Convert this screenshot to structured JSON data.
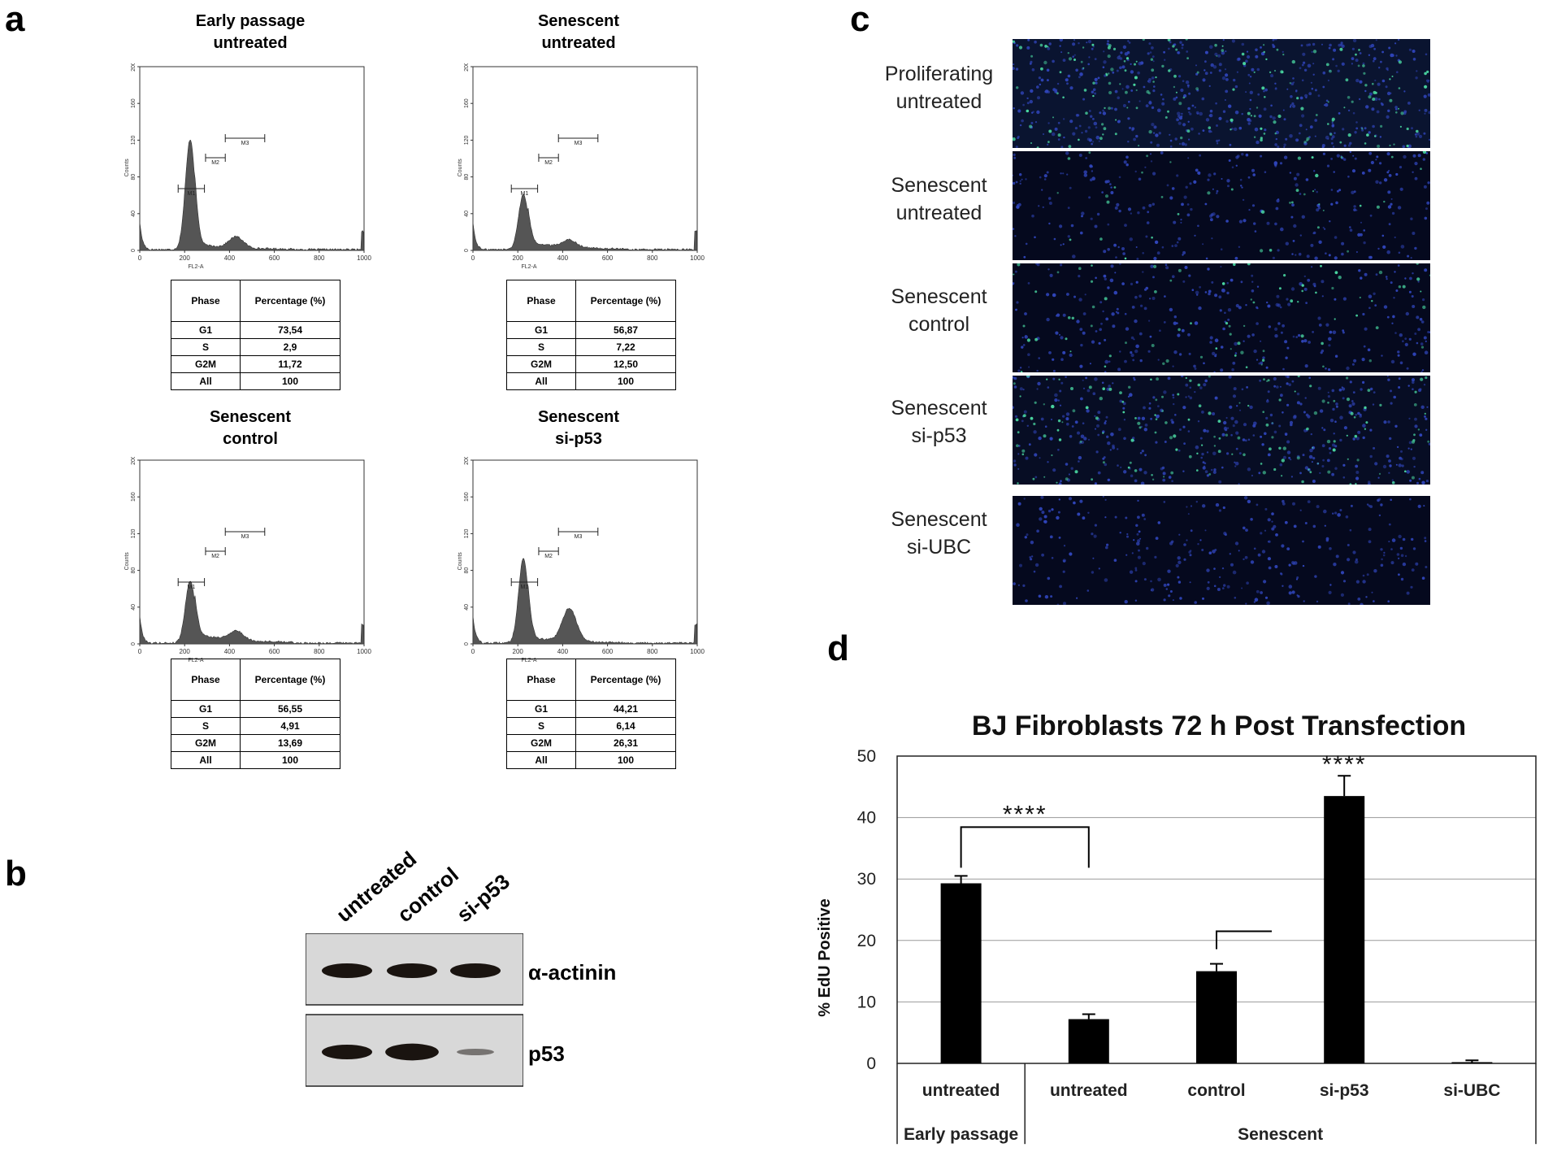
{
  "panel_letters": {
    "a": "a",
    "b": "b",
    "c": "c",
    "d": "d"
  },
  "histograms": [
    {
      "title_line1": "Early passage",
      "title_line2": "untreated",
      "peak_g1": 120,
      "peak_g2": 12,
      "noise": 6,
      "yticks": [
        "0",
        "40",
        "80",
        "120",
        "160",
        "200"
      ],
      "xticks": [
        "0",
        "200",
        "400",
        "600",
        "800",
        "1000"
      ],
      "ylabel": "Counts",
      "xlabel": "FL2-A",
      "markers": [
        "M1",
        "M2",
        "M3"
      ],
      "table": {
        "header": [
          "Phase",
          "Percentage (%)"
        ],
        "rows": [
          [
            "G1",
            "73,54"
          ],
          [
            "S",
            "2,9"
          ],
          [
            "G2M",
            "11,72"
          ],
          [
            "All",
            "100"
          ]
        ]
      }
    },
    {
      "title_line1": "Senescent",
      "title_line2": "untreated",
      "peak_g1": 60,
      "peak_g2": 8,
      "noise": 8,
      "yticks": [
        "0",
        "40",
        "80",
        "120",
        "160",
        "200"
      ],
      "xticks": [
        "0",
        "200",
        "400",
        "600",
        "800",
        "1000"
      ],
      "ylabel": "Counts",
      "xlabel": "FL2-A",
      "markers": [
        "M1",
        "M2",
        "M3"
      ],
      "table": {
        "header": [
          "Phase",
          "Percentage (%)"
        ],
        "rows": [
          [
            "G1",
            "56,87"
          ],
          [
            "S",
            "7,22"
          ],
          [
            "G2M",
            "12,50"
          ],
          [
            "All",
            "100"
          ]
        ]
      }
    },
    {
      "title_line1": "Senescent",
      "title_line2": "control",
      "peak_g1": 68,
      "peak_g2": 10,
      "noise": 10,
      "yticks": [
        "0",
        "40",
        "80",
        "120",
        "160",
        "200"
      ],
      "xticks": [
        "0",
        "200",
        "400",
        "600",
        "800",
        "1000"
      ],
      "ylabel": "Counts",
      "xlabel": "FL2-A",
      "markers": [
        "M1",
        "M2",
        "M3"
      ],
      "table": {
        "header": [
          "Phase",
          "Percentage (%)"
        ],
        "rows": [
          [
            "G1",
            "56,55"
          ],
          [
            "S",
            "4,91"
          ],
          [
            "G2M",
            "13,69"
          ],
          [
            "All",
            "100"
          ]
        ]
      }
    },
    {
      "title_line1": "Senescent",
      "title_line2": "si-p53",
      "peak_g1": 92,
      "peak_g2": 36,
      "noise": 6,
      "yticks": [
        "0",
        "40",
        "80",
        "120",
        "160",
        "200"
      ],
      "xticks": [
        "0",
        "200",
        "400",
        "600",
        "800",
        "1000"
      ],
      "ylabel": "Counts",
      "xlabel": "FL2-A",
      "markers": [
        "M1",
        "M2",
        "M3"
      ],
      "table": {
        "header": [
          "Phase",
          "Percentage (%)"
        ],
        "rows": [
          [
            "G1",
            "44,21"
          ],
          [
            "S",
            "6,14"
          ],
          [
            "G2M",
            "26,31"
          ],
          [
            "All",
            "100"
          ]
        ]
      }
    }
  ],
  "western_blot": {
    "lanes": [
      "untreated",
      "control",
      "si-p53"
    ],
    "bands": [
      {
        "label": "α-actinin",
        "intensity": [
          1.0,
          1.0,
          1.0
        ]
      },
      {
        "label": "p53",
        "intensity": [
          1.0,
          1.15,
          0.35
        ]
      }
    ]
  },
  "microscopy": {
    "panels": [
      {
        "label_line1": "Proliferating",
        "label_line2": "untreated",
        "green": 0.7,
        "blue": 1.0
      },
      {
        "label_line1": "Senescent",
        "label_line2": "untreated",
        "green": 0.15,
        "blue": 0.6
      },
      {
        "label_line1": "Senescent",
        "label_line2": "control",
        "green": 0.3,
        "blue": 0.6
      },
      {
        "label_line1": "Senescent",
        "label_line2": "si-p53",
        "green": 0.6,
        "blue": 0.8
      },
      {
        "label_line1": "Senescent",
        "label_line2": "si-UBC",
        "green": 0.0,
        "blue": 0.6
      }
    ]
  },
  "chart_data": {
    "type": "bar",
    "title": "BJ Fibroblasts 72 h Post Transfection",
    "ylabel": "% EdU Positive",
    "xlabel": "",
    "ylim": [
      0,
      50
    ],
    "yticks": [
      0,
      10,
      20,
      30,
      40,
      50
    ],
    "grid": true,
    "categories": [
      "untreated",
      "untreated",
      "control",
      "si-p53",
      "si-UBC"
    ],
    "groups": [
      {
        "label": "Early passage",
        "categories": [
          "untreated"
        ]
      },
      {
        "label": "Senescent",
        "categories": [
          "untreated",
          "control",
          "si-p53",
          "si-UBC"
        ]
      }
    ],
    "values": [
      29.3,
      7.2,
      15.0,
      43.5,
      0.2
    ],
    "errors": [
      1.2,
      0.8,
      1.2,
      3.3,
      0.3
    ],
    "bar_color": "#000000",
    "significance": [
      {
        "label": "****",
        "type": "bracket",
        "from": 0,
        "to": 1
      },
      {
        "label": "",
        "type": "bracket",
        "from": 2,
        "to": 3
      },
      {
        "label": "****",
        "type": "above",
        "index": 3
      }
    ]
  }
}
